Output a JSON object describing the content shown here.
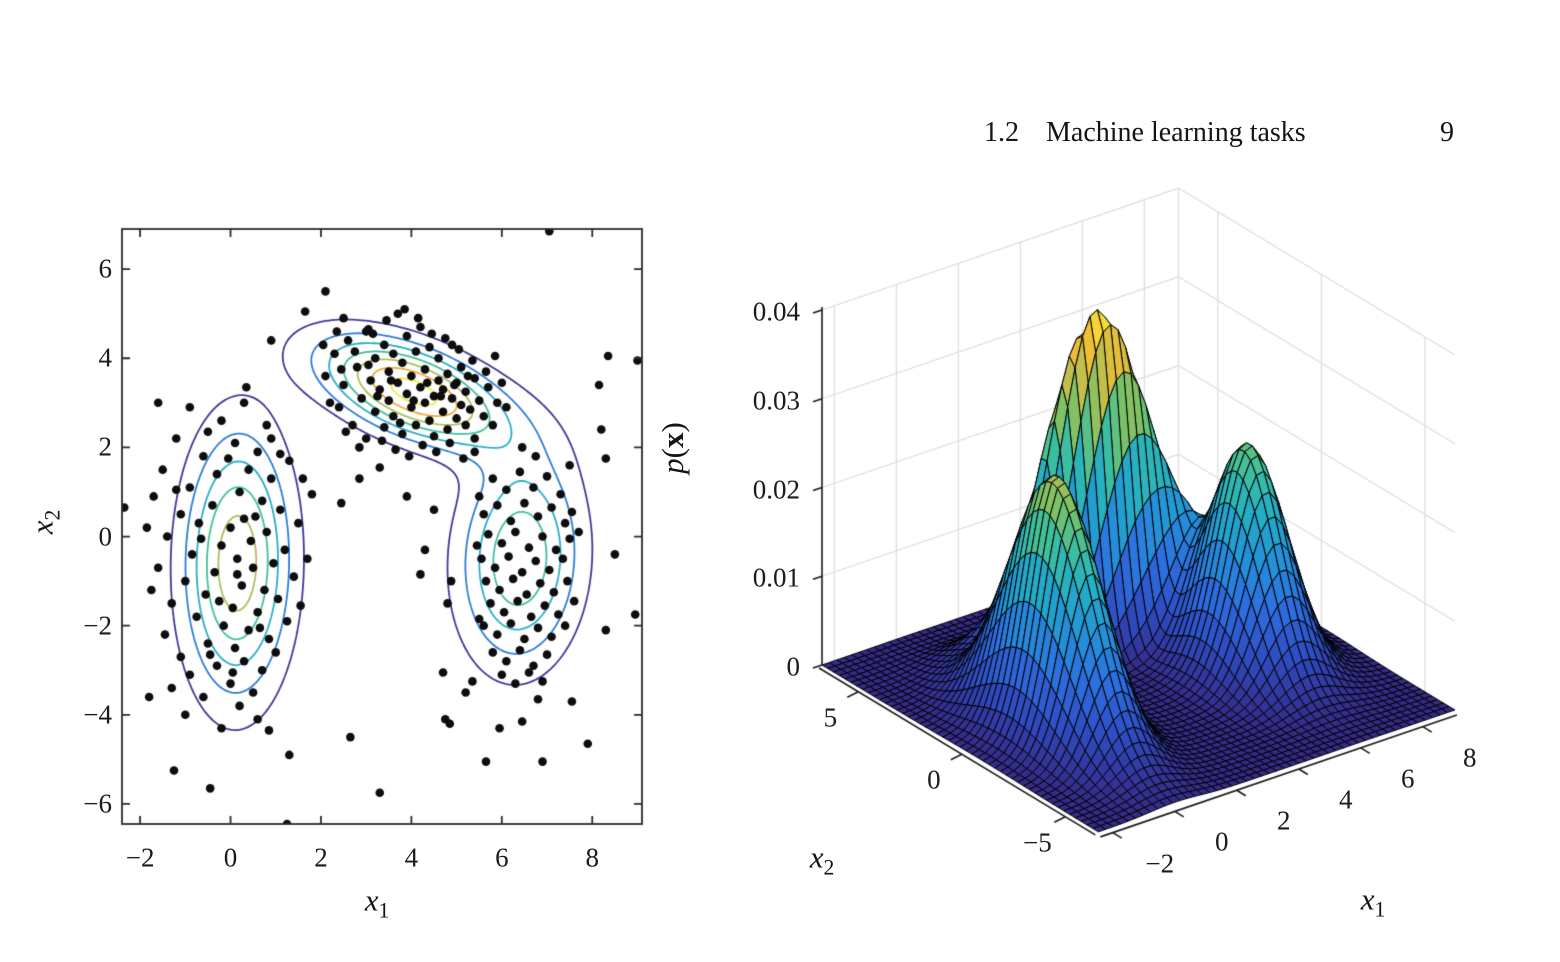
{
  "page": {
    "background": "#ffffff",
    "header": {
      "section": "1.2",
      "title": "Machine learning tasks",
      "page_number": "9"
    }
  },
  "chart_data": [
    {
      "type": "scatter",
      "subtype": "scatter-with-density-contours",
      "title": "",
      "xlabel": {
        "base": "x",
        "sub": "1"
      },
      "ylabel": {
        "base": "x",
        "sub": "2"
      },
      "xlim": [
        -2.4,
        9.1
      ],
      "ylim": [
        -6.45,
        6.9
      ],
      "xticks": [
        -2,
        0,
        2,
        4,
        6,
        8
      ],
      "yticks": [
        -6,
        -4,
        -2,
        0,
        2,
        4,
        6
      ],
      "grid": false,
      "scatter_color": "#0d0d0d",
      "point_radius_px": 4.3,
      "contour_levels": [
        0.005,
        0.01,
        0.015,
        0.02,
        0.025,
        0.03,
        0.035
      ],
      "contour_colors": [
        "#3f3896",
        "#2d7cd9",
        "#27aec9",
        "#41bf9c",
        "#a8c05c",
        "#f5a83c",
        "#f0ee42"
      ],
      "gmm": {
        "weights": [
          0.285,
          0.22,
          0.22
        ],
        "means": [
          [
            0.15,
            -0.6
          ],
          [
            4.05,
            3.25
          ],
          [
            6.4,
            -0.5
          ]
        ],
        "covs": [
          [
            [
              0.62,
              0.05
            ],
            [
              0.05,
              4.0
            ]
          ],
          [
            [
              1.9,
              -0.6
            ],
            [
              -0.6,
              0.65
            ]
          ],
          [
            [
              0.8,
              0.1
            ],
            [
              0.1,
              2.5
            ]
          ]
        ]
      },
      "points": [
        [
          -0.9,
          2.9
        ],
        [
          0.3,
          3.0
        ],
        [
          -0.2,
          2.6
        ],
        [
          0.8,
          2.5
        ],
        [
          -1.2,
          2.2
        ],
        [
          0.1,
          2.1
        ],
        [
          0.6,
          1.9
        ],
        [
          -0.6,
          1.8
        ],
        [
          1.3,
          1.7
        ],
        [
          -1.5,
          1.5
        ],
        [
          0.4,
          1.5
        ],
        [
          -0.3,
          1.4
        ],
        [
          0.9,
          1.3
        ],
        [
          1.6,
          1.3
        ],
        [
          -0.9,
          1.1
        ],
        [
          0.2,
          1.0
        ],
        [
          -1.7,
          0.9
        ],
        [
          0.7,
          0.8
        ],
        [
          -0.4,
          0.7
        ],
        [
          1.1,
          0.6
        ],
        [
          -1.1,
          0.5
        ],
        [
          0.3,
          0.4
        ],
        [
          1.5,
          0.3
        ],
        [
          -0.7,
          0.3
        ],
        [
          0.0,
          0.2
        ],
        [
          0.8,
          0.1
        ],
        [
          -1.4,
          0.0
        ],
        [
          0.45,
          -0.1
        ],
        [
          -0.2,
          -0.2
        ],
        [
          1.2,
          -0.3
        ],
        [
          -0.85,
          -0.4
        ],
        [
          0.15,
          -0.5
        ],
        [
          0.95,
          -0.6
        ],
        [
          -1.6,
          -0.7
        ],
        [
          0.5,
          -0.7
        ],
        [
          -0.35,
          -0.8
        ],
        [
          1.4,
          -0.9
        ],
        [
          -1.0,
          -1.0
        ],
        [
          0.25,
          -1.1
        ],
        [
          0.75,
          -1.2
        ],
        [
          -0.55,
          -1.3
        ],
        [
          1.05,
          -1.4
        ],
        [
          -1.3,
          -1.5
        ],
        [
          0.05,
          -1.6
        ],
        [
          0.6,
          -1.7
        ],
        [
          -0.75,
          -1.8
        ],
        [
          1.25,
          -1.9
        ],
        [
          -0.15,
          -2.0
        ],
        [
          0.4,
          -2.1
        ],
        [
          -1.45,
          -2.2
        ],
        [
          0.85,
          -2.3
        ],
        [
          -0.5,
          -2.4
        ],
        [
          0.1,
          -2.5
        ],
        [
          1.0,
          -2.6
        ],
        [
          -1.1,
          -2.7
        ],
        [
          0.3,
          -2.8
        ],
        [
          -0.3,
          -2.9
        ],
        [
          0.7,
          -3.0
        ],
        [
          -0.9,
          -3.1
        ],
        [
          0.0,
          -3.3
        ],
        [
          -1.3,
          -3.4
        ],
        [
          0.5,
          -3.5
        ],
        [
          -0.6,
          -3.6
        ],
        [
          0.2,
          -3.8
        ],
        [
          -1.0,
          -4.0
        ],
        [
          0.6,
          -4.1
        ],
        [
          -0.2,
          -4.3
        ],
        [
          0.9,
          2.2
        ],
        [
          -0.5,
          2.35
        ],
        [
          1.8,
          0.95
        ],
        [
          -1.85,
          0.2
        ],
        [
          1.7,
          -0.5
        ],
        [
          -1.75,
          -1.2
        ],
        [
          1.55,
          -1.55
        ],
        [
          0.35,
          3.35
        ],
        [
          -0.05,
          1.75
        ],
        [
          0.55,
          0.45
        ],
        [
          -0.65,
          -0.05
        ],
        [
          0.15,
          -0.85
        ],
        [
          -0.25,
          -1.45
        ],
        [
          0.65,
          -2.05
        ],
        [
          -0.45,
          -2.65
        ],
        [
          0.05,
          -3.05
        ],
        [
          1.1,
          1.85
        ],
        [
          -1.2,
          1.05
        ],
        [
          2.1,
          3.6
        ],
        [
          2.3,
          4.1
        ],
        [
          2.4,
          2.9
        ],
        [
          2.5,
          3.4
        ],
        [
          2.6,
          4.4
        ],
        [
          2.7,
          2.5
        ],
        [
          2.8,
          3.8
        ],
        [
          2.9,
          3.1
        ],
        [
          3.0,
          4.6
        ],
        [
          3.0,
          2.2
        ],
        [
          3.1,
          3.5
        ],
        [
          3.2,
          4.0
        ],
        [
          3.2,
          2.8
        ],
        [
          3.3,
          3.3
        ],
        [
          3.4,
          4.3
        ],
        [
          3.4,
          2.45
        ],
        [
          3.5,
          3.7
        ],
        [
          3.5,
          3.05
        ],
        [
          3.6,
          4.1
        ],
        [
          3.6,
          2.7
        ],
        [
          3.7,
          3.45
        ],
        [
          3.7,
          5.0
        ],
        [
          3.8,
          3.9
        ],
        [
          3.8,
          2.3
        ],
        [
          3.9,
          3.2
        ],
        [
          3.9,
          4.5
        ],
        [
          4.0,
          2.9
        ],
        [
          4.0,
          3.6
        ],
        [
          4.1,
          4.15
        ],
        [
          4.1,
          2.5
        ],
        [
          4.2,
          3.35
        ],
        [
          4.2,
          4.7
        ],
        [
          4.3,
          3.0
        ],
        [
          4.3,
          3.75
        ],
        [
          4.4,
          2.6
        ],
        [
          4.4,
          4.25
        ],
        [
          4.5,
          3.15
        ],
        [
          4.5,
          2.25
        ],
        [
          4.6,
          3.5
        ],
        [
          4.6,
          4.0
        ],
        [
          4.7,
          2.8
        ],
        [
          4.7,
          3.3
        ],
        [
          4.8,
          3.65
        ],
        [
          4.8,
          2.4
        ],
        [
          4.9,
          3.1
        ],
        [
          4.9,
          4.3
        ],
        [
          5.0,
          2.65
        ],
        [
          5.0,
          3.45
        ],
        [
          5.1,
          2.95
        ],
        [
          5.1,
          3.8
        ],
        [
          5.2,
          2.5
        ],
        [
          5.2,
          3.25
        ],
        [
          5.3,
          2.85
        ],
        [
          5.4,
          3.55
        ],
        [
          5.4,
          2.2
        ],
        [
          5.5,
          3.05
        ],
        [
          5.6,
          2.7
        ],
        [
          5.7,
          3.35
        ],
        [
          5.8,
          2.5
        ],
        [
          5.9,
          3.0
        ],
        [
          2.2,
          3.0
        ],
        [
          2.45,
          3.75
        ],
        [
          2.75,
          4.15
        ],
        [
          3.05,
          3.85
        ],
        [
          3.35,
          2.15
        ],
        [
          3.65,
          1.95
        ],
        [
          3.95,
          1.8
        ],
        [
          4.25,
          2.05
        ],
        [
          4.55,
          1.9
        ],
        [
          4.85,
          2.1
        ],
        [
          5.15,
          1.75
        ],
        [
          3.15,
          4.55
        ],
        [
          3.45,
          4.85
        ],
        [
          3.85,
          5.1
        ],
        [
          4.15,
          4.9
        ],
        [
          4.45,
          4.55
        ],
        [
          4.75,
          4.45
        ],
        [
          5.05,
          4.2
        ],
        [
          5.35,
          3.95
        ],
        [
          5.65,
          3.7
        ],
        [
          2.55,
          2.35
        ],
        [
          2.85,
          2.0
        ],
        [
          6.0,
          3.45
        ],
        [
          6.1,
          2.9
        ],
        [
          2.05,
          4.3
        ],
        [
          2.35,
          4.6
        ],
        [
          5.85,
          4.05
        ],
        [
          3.25,
          3.15
        ],
        [
          3.55,
          3.5
        ],
        [
          4.05,
          3.05
        ],
        [
          4.35,
          3.45
        ],
        [
          4.65,
          3.15
        ],
        [
          4.95,
          3.4
        ],
        [
          5.25,
          3.6
        ],
        [
          3.75,
          2.55
        ],
        [
          5.5,
          0.9
        ],
        [
          5.8,
          1.3
        ],
        [
          6.1,
          1.05
        ],
        [
          6.4,
          1.45
        ],
        [
          6.7,
          1.1
        ],
        [
          7.0,
          1.35
        ],
        [
          7.3,
          0.95
        ],
        [
          5.6,
          0.5
        ],
        [
          5.9,
          0.7
        ],
        [
          6.2,
          0.35
        ],
        [
          6.5,
          0.75
        ],
        [
          6.8,
          0.45
        ],
        [
          7.1,
          0.65
        ],
        [
          7.4,
          0.3
        ],
        [
          5.7,
          0.05
        ],
        [
          6.0,
          -0.15
        ],
        [
          6.3,
          0.1
        ],
        [
          6.6,
          -0.25
        ],
        [
          6.9,
          0.0
        ],
        [
          7.2,
          -0.3
        ],
        [
          7.5,
          -0.05
        ],
        [
          5.55,
          -0.5
        ],
        [
          5.85,
          -0.7
        ],
        [
          6.15,
          -0.45
        ],
        [
          6.45,
          -0.8
        ],
        [
          6.75,
          -0.55
        ],
        [
          7.05,
          -0.75
        ],
        [
          7.35,
          -0.5
        ],
        [
          5.65,
          -1.0
        ],
        [
          5.95,
          -1.2
        ],
        [
          6.25,
          -0.95
        ],
        [
          6.55,
          -1.3
        ],
        [
          6.85,
          -1.05
        ],
        [
          7.15,
          -1.25
        ],
        [
          7.45,
          -1.0
        ],
        [
          5.75,
          -1.5
        ],
        [
          6.05,
          -1.7
        ],
        [
          6.35,
          -1.45
        ],
        [
          6.65,
          -1.8
        ],
        [
          6.95,
          -1.55
        ],
        [
          7.25,
          -1.75
        ],
        [
          5.6,
          -2.0
        ],
        [
          5.9,
          -2.2
        ],
        [
          6.2,
          -1.95
        ],
        [
          6.5,
          -2.3
        ],
        [
          6.8,
          -2.05
        ],
        [
          7.1,
          -2.25
        ],
        [
          7.4,
          -2.0
        ],
        [
          5.8,
          -2.6
        ],
        [
          6.1,
          -2.8
        ],
        [
          6.4,
          -2.55
        ],
        [
          6.7,
          -2.9
        ],
        [
          7.0,
          -2.65
        ],
        [
          6.0,
          -3.1
        ],
        [
          6.3,
          -3.3
        ],
        [
          6.6,
          -3.05
        ],
        [
          6.9,
          -3.25
        ],
        [
          7.55,
          0.55
        ],
        [
          5.45,
          -0.2
        ],
        [
          7.6,
          -1.45
        ],
        [
          5.5,
          -1.85
        ],
        [
          6.45,
          2.0
        ],
        [
          6.75,
          1.8
        ],
        [
          7.5,
          1.6
        ],
        [
          7.7,
          0.1
        ],
        [
          4.7,
          -3.05
        ],
        [
          5.35,
          -3.25
        ],
        [
          4.75,
          -4.1
        ],
        [
          5.95,
          -4.3
        ],
        [
          6.45,
          -4.15
        ],
        [
          6.8,
          -3.65
        ],
        [
          7.55,
          -3.7
        ],
        [
          7.05,
          6.85
        ],
        [
          2.1,
          5.5
        ],
        [
          1.65,
          5.05
        ],
        [
          2.5,
          4.9
        ],
        [
          3.05,
          4.65
        ],
        [
          0.9,
          4.4
        ],
        [
          8.35,
          4.05
        ],
        [
          9.0,
          3.95
        ],
        [
          8.15,
          3.4
        ],
        [
          -1.6,
          3.0
        ],
        [
          -2.35,
          0.65
        ],
        [
          -1.8,
          -3.6
        ],
        [
          -1.25,
          -5.25
        ],
        [
          -0.45,
          -5.65
        ],
        [
          1.3,
          -4.9
        ],
        [
          5.65,
          -5.05
        ],
        [
          6.9,
          -5.05
        ],
        [
          1.25,
          -6.45
        ],
        [
          0.85,
          -4.35
        ],
        [
          4.3,
          -0.3
        ],
        [
          4.5,
          0.6
        ],
        [
          3.9,
          0.9
        ],
        [
          4.8,
          -1.5
        ],
        [
          5.2,
          -3.5
        ],
        [
          8.3,
          -2.1
        ],
        [
          8.5,
          -0.4
        ],
        [
          2.85,
          1.3
        ],
        [
          3.3,
          1.55
        ],
        [
          2.45,
          0.75
        ],
        [
          7.9,
          -4.65
        ],
        [
          4.85,
          -4.2
        ],
        [
          3.3,
          -5.75
        ],
        [
          2.65,
          -4.5
        ],
        [
          4.2,
          -0.85
        ],
        [
          4.88,
          -1.0
        ],
        [
          8.2,
          2.4
        ],
        [
          8.3,
          1.75
        ],
        [
          8.95,
          -1.75
        ],
        [
          5.4,
          1.9
        ]
      ]
    },
    {
      "type": "surface",
      "subtype": "gmm-density-surface",
      "title": "",
      "xlabel": {
        "base": "x",
        "sub": "1"
      },
      "ylabel": {
        "base": "x",
        "sub": "2"
      },
      "zlabel": {
        "p": "p",
        "open": "(",
        "x": "x",
        "close": ")"
      },
      "xlim": [
        -2.4,
        9.1
      ],
      "ylim": [
        -6.45,
        6.9
      ],
      "zlim": [
        0,
        0.04
      ],
      "xticks": [
        -2,
        0,
        2,
        4,
        6,
        8
      ],
      "yticks": [
        5,
        0,
        -5
      ],
      "zticks": [
        0,
        0.01,
        0.02,
        0.03,
        0.04
      ],
      "grid": true,
      "grid_color": "#dcdcdc",
      "mesh_n": 49,
      "edge_color": "#000000",
      "colormap": "parula",
      "colormap_stops": [
        [
          0.0,
          "#352a87"
        ],
        [
          0.13,
          "#2f4bc1"
        ],
        [
          0.26,
          "#2d6fe0"
        ],
        [
          0.38,
          "#2392d8"
        ],
        [
          0.5,
          "#24aec4"
        ],
        [
          0.6,
          "#3cbf9f"
        ],
        [
          0.7,
          "#7ac168"
        ],
        [
          0.8,
          "#b9bf4f"
        ],
        [
          0.9,
          "#eebe34"
        ],
        [
          1.0,
          "#fce838"
        ]
      ],
      "gmm": {
        "weights": [
          0.285,
          0.22,
          0.22
        ],
        "means": [
          [
            0.15,
            -0.6
          ],
          [
            4.05,
            3.25
          ],
          [
            6.4,
            -0.5
          ]
        ],
        "covs": [
          [
            [
              0.62,
              0.05
            ],
            [
              0.05,
              4.0
            ]
          ],
          [
            [
              1.9,
              -0.6
            ],
            [
              -0.6,
              0.65
            ]
          ],
          [
            [
              0.8,
              0.1
            ],
            [
              0.1,
              2.5
            ]
          ]
        ]
      }
    }
  ]
}
